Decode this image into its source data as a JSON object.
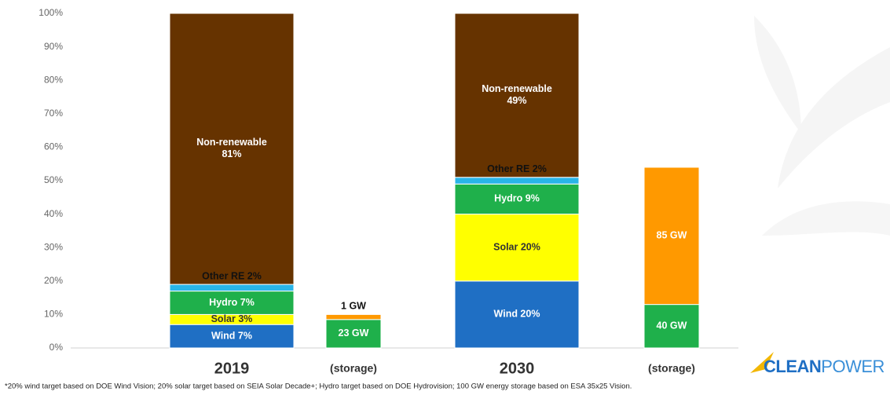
{
  "chart_data": {
    "type": "bar",
    "stacked": true,
    "categories": [
      "2019",
      "(storage)",
      "2030",
      "(storage)"
    ],
    "series": [
      {
        "color": "#1f6fc4",
        "label_color": "#ffffff",
        "values": [
          7,
          null,
          20,
          null
        ],
        "value_labels": [
          "Wind 7%",
          null,
          "Wind 20%",
          null
        ]
      },
      {
        "color": "#ffff00",
        "label_color": "#333333",
        "values": [
          3,
          null,
          20,
          null
        ],
        "value_labels": [
          "Solar 3%",
          null,
          "Solar 20%",
          null
        ]
      },
      {
        "color": "#1fb04b",
        "label_color": "#ffffff",
        "values": [
          7,
          null,
          9,
          null
        ],
        "value_labels": [
          "Hydro 7%",
          null,
          "Hydro 9%",
          null
        ]
      },
      {
        "color": "#29b5e8",
        "label_color": "#ffffff",
        "values": [
          2,
          null,
          2,
          null
        ],
        "value_labels": [
          "Other RE 2%",
          null,
          "Other RE 2%",
          null
        ]
      },
      {
        "color": "#663300",
        "label_color": "#ffffff",
        "values": [
          81,
          null,
          49,
          null
        ],
        "value_labels": [
          "Non-renewable\n81%",
          null,
          "Non-renewable\n49%",
          null
        ]
      },
      {
        "color": "#1fb04b",
        "label_color": "#ffffff",
        "values": [
          null,
          8.5,
          null,
          13
        ],
        "annotations": [
          null,
          "23 GW",
          null,
          "40 GW"
        ]
      },
      {
        "color": "#ff9900",
        "label_color": "#ffffff",
        "values": [
          null,
          1.5,
          null,
          41
        ],
        "annotations": [
          null,
          "1 GW",
          null,
          "85 GW"
        ]
      }
    ],
    "ylim": [
      0,
      100
    ],
    "yticks": [
      {
        "value": 0,
        "label": "0%"
      },
      {
        "value": 10,
        "label": "10%"
      },
      {
        "value": 20,
        "label": "20%"
      },
      {
        "value": 30,
        "label": "30%"
      },
      {
        "value": 40,
        "label": "40%"
      },
      {
        "value": 50,
        "label": "50%"
      },
      {
        "value": 60,
        "label": "60%"
      },
      {
        "value": 70,
        "label": "70%"
      },
      {
        "value": 80,
        "label": "80%"
      },
      {
        "value": 90,
        "label": "90%"
      },
      {
        "value": 100,
        "label": "100%"
      }
    ],
    "footnote": "*20% wind target based on DOE Wind Vision; 20% solar target based  on SEIA Solar Decade+; Hydro target based on DOE Hydrovision; 100 GW energy storage based on ESA 35x25 Vision."
  },
  "logo": [
    "CLEAN",
    "POWER"
  ]
}
